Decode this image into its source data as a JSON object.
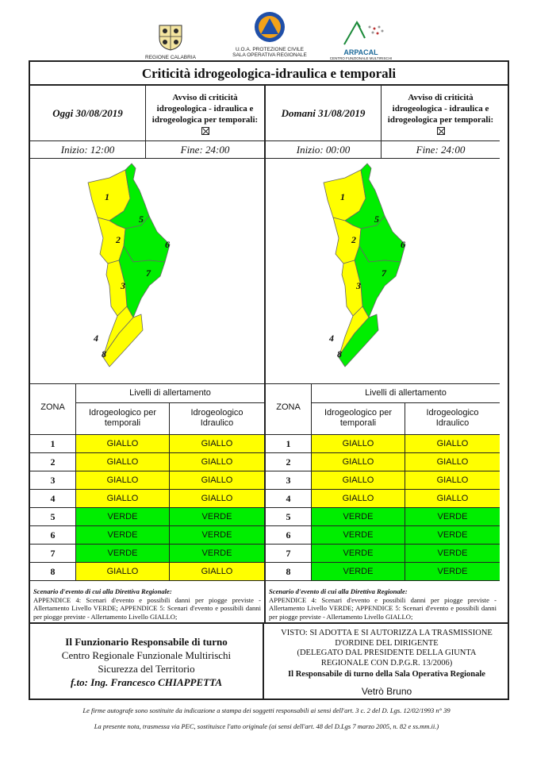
{
  "logos": {
    "regione": "REGIONE CALABRIA",
    "protezione_line1": "U.O.A. PROTEZIONE CIVILE",
    "protezione_line2": "SALA OPERATIVA REGIONALE",
    "arpacal": "ARPACAL",
    "arpacal_sub": "CENTRO FUNZIONALE MULTIRISCHI"
  },
  "title": "Criticità idrogeologica-idraulica e temporali",
  "colors": {
    "giallo": "#ffff00",
    "verde": "#00ee00",
    "border": "#222222"
  },
  "today": {
    "date": "Oggi 30/08/2019",
    "avviso": [
      "Avviso di criticità",
      "idrogeologica - idraulica e",
      "idrogeologica per temporali:"
    ],
    "inizio": "Inizio: 12:00",
    "fine": "Fine: 24:00",
    "zones_map": [
      "1",
      "2",
      "3",
      "4",
      "5",
      "6",
      "7",
      "8"
    ],
    "levels": [
      {
        "zona": "1",
        "temporali": "GIALLO",
        "idraulico": "GIALLO"
      },
      {
        "zona": "2",
        "temporali": "GIALLO",
        "idraulico": "GIALLO"
      },
      {
        "zona": "3",
        "temporali": "GIALLO",
        "idraulico": "GIALLO"
      },
      {
        "zona": "4",
        "temporali": "GIALLO",
        "idraulico": "GIALLO"
      },
      {
        "zona": "5",
        "temporali": "VERDE",
        "idraulico": "VERDE"
      },
      {
        "zona": "6",
        "temporali": "VERDE",
        "idraulico": "VERDE"
      },
      {
        "zona": "7",
        "temporali": "VERDE",
        "idraulico": "VERDE"
      },
      {
        "zona": "8",
        "temporali": "GIALLO",
        "idraulico": "GIALLO"
      }
    ],
    "scenario_title": "Scenario d'evento di cui alla Direttiva Regionale:",
    "scenario_text": "APPENDICE 4: Scenari d'evento e possibili danni per piogge previste - Allertamento Livello VERDE; APPENDICE 5: Scenari d'evento e possibili danni per piogge previste - Allertamento Livello GIALLO;"
  },
  "tomorrow": {
    "date": "Domani 31/08/2019",
    "avviso": [
      "Avviso di criticità",
      "idrogeologica - idraulica e",
      "idrogeologica per temporali:"
    ],
    "inizio": "Inizio: 00:00",
    "fine": "Fine: 24:00",
    "zones_map": [
      "1",
      "2",
      "3",
      "4",
      "5",
      "6",
      "7",
      "8"
    ],
    "levels": [
      {
        "zona": "1",
        "temporali": "GIALLO",
        "idraulico": "GIALLO"
      },
      {
        "zona": "2",
        "temporali": "GIALLO",
        "idraulico": "GIALLO"
      },
      {
        "zona": "3",
        "temporali": "GIALLO",
        "idraulico": "GIALLO"
      },
      {
        "zona": "4",
        "temporali": "GIALLO",
        "idraulico": "GIALLO"
      },
      {
        "zona": "5",
        "temporali": "VERDE",
        "idraulico": "VERDE"
      },
      {
        "zona": "6",
        "temporali": "VERDE",
        "idraulico": "VERDE"
      },
      {
        "zona": "7",
        "temporali": "VERDE",
        "idraulico": "VERDE"
      },
      {
        "zona": "8",
        "temporali": "VERDE",
        "idraulico": "VERDE"
      }
    ],
    "scenario_title": "Scenario d'evento di cui alla Direttiva Regionale:",
    "scenario_text": "APPENDICE 4: Scenari d'evento e possibili danni per piogge previste - Allertamento Livello VERDE; APPENDICE 5: Scenari d'evento e possibili danni per piogge previste - Allertamento Livello GIALLO;"
  },
  "table_headers": {
    "zona": "ZONA",
    "livelli": "Livelli di allertamento",
    "col1": [
      "Idrogeologico per",
      "temporali"
    ],
    "col2": [
      "Idrogeologico",
      "Idraulico"
    ]
  },
  "footer_left": {
    "l1": "Il Funzionario Responsabile di turno",
    "l2": "Centro Regionale Funzionale Multirischi",
    "l3": "Sicurezza del Territorio",
    "l4": "f.to: Ing. Francesco CHIAPPETTA"
  },
  "footer_right": {
    "l1": "VISTO: SI ADOTTA E SI AUTORIZZA LA TRASMISSIONE",
    "l2": "D'ORDINE DEL DIRIGENTE",
    "l3": "(DELEGATO DAL PRESIDENTE DELLA GIUNTA",
    "l4": "REGIONALE CON D.P.G.R. 13/2006)",
    "l5": "Il Responsabile di turno della Sala Operativa Regionale",
    "l6": "Vetrò Bruno"
  },
  "notes": {
    "n1": "Le firme autografe sono sostituite da indicazione a stampa dei soggetti responsabili ai sensi dell'art. 3 c. 2 del D. Lgs. 12/02/1993 n° 39",
    "n2": "La presente nota, trasmessa via PEC, sostituisce l'atto originale (ai sensi dell'art. 48 del D.Lgs 7 marzo 2005, n. 82 e ss.mm.ii.)"
  }
}
